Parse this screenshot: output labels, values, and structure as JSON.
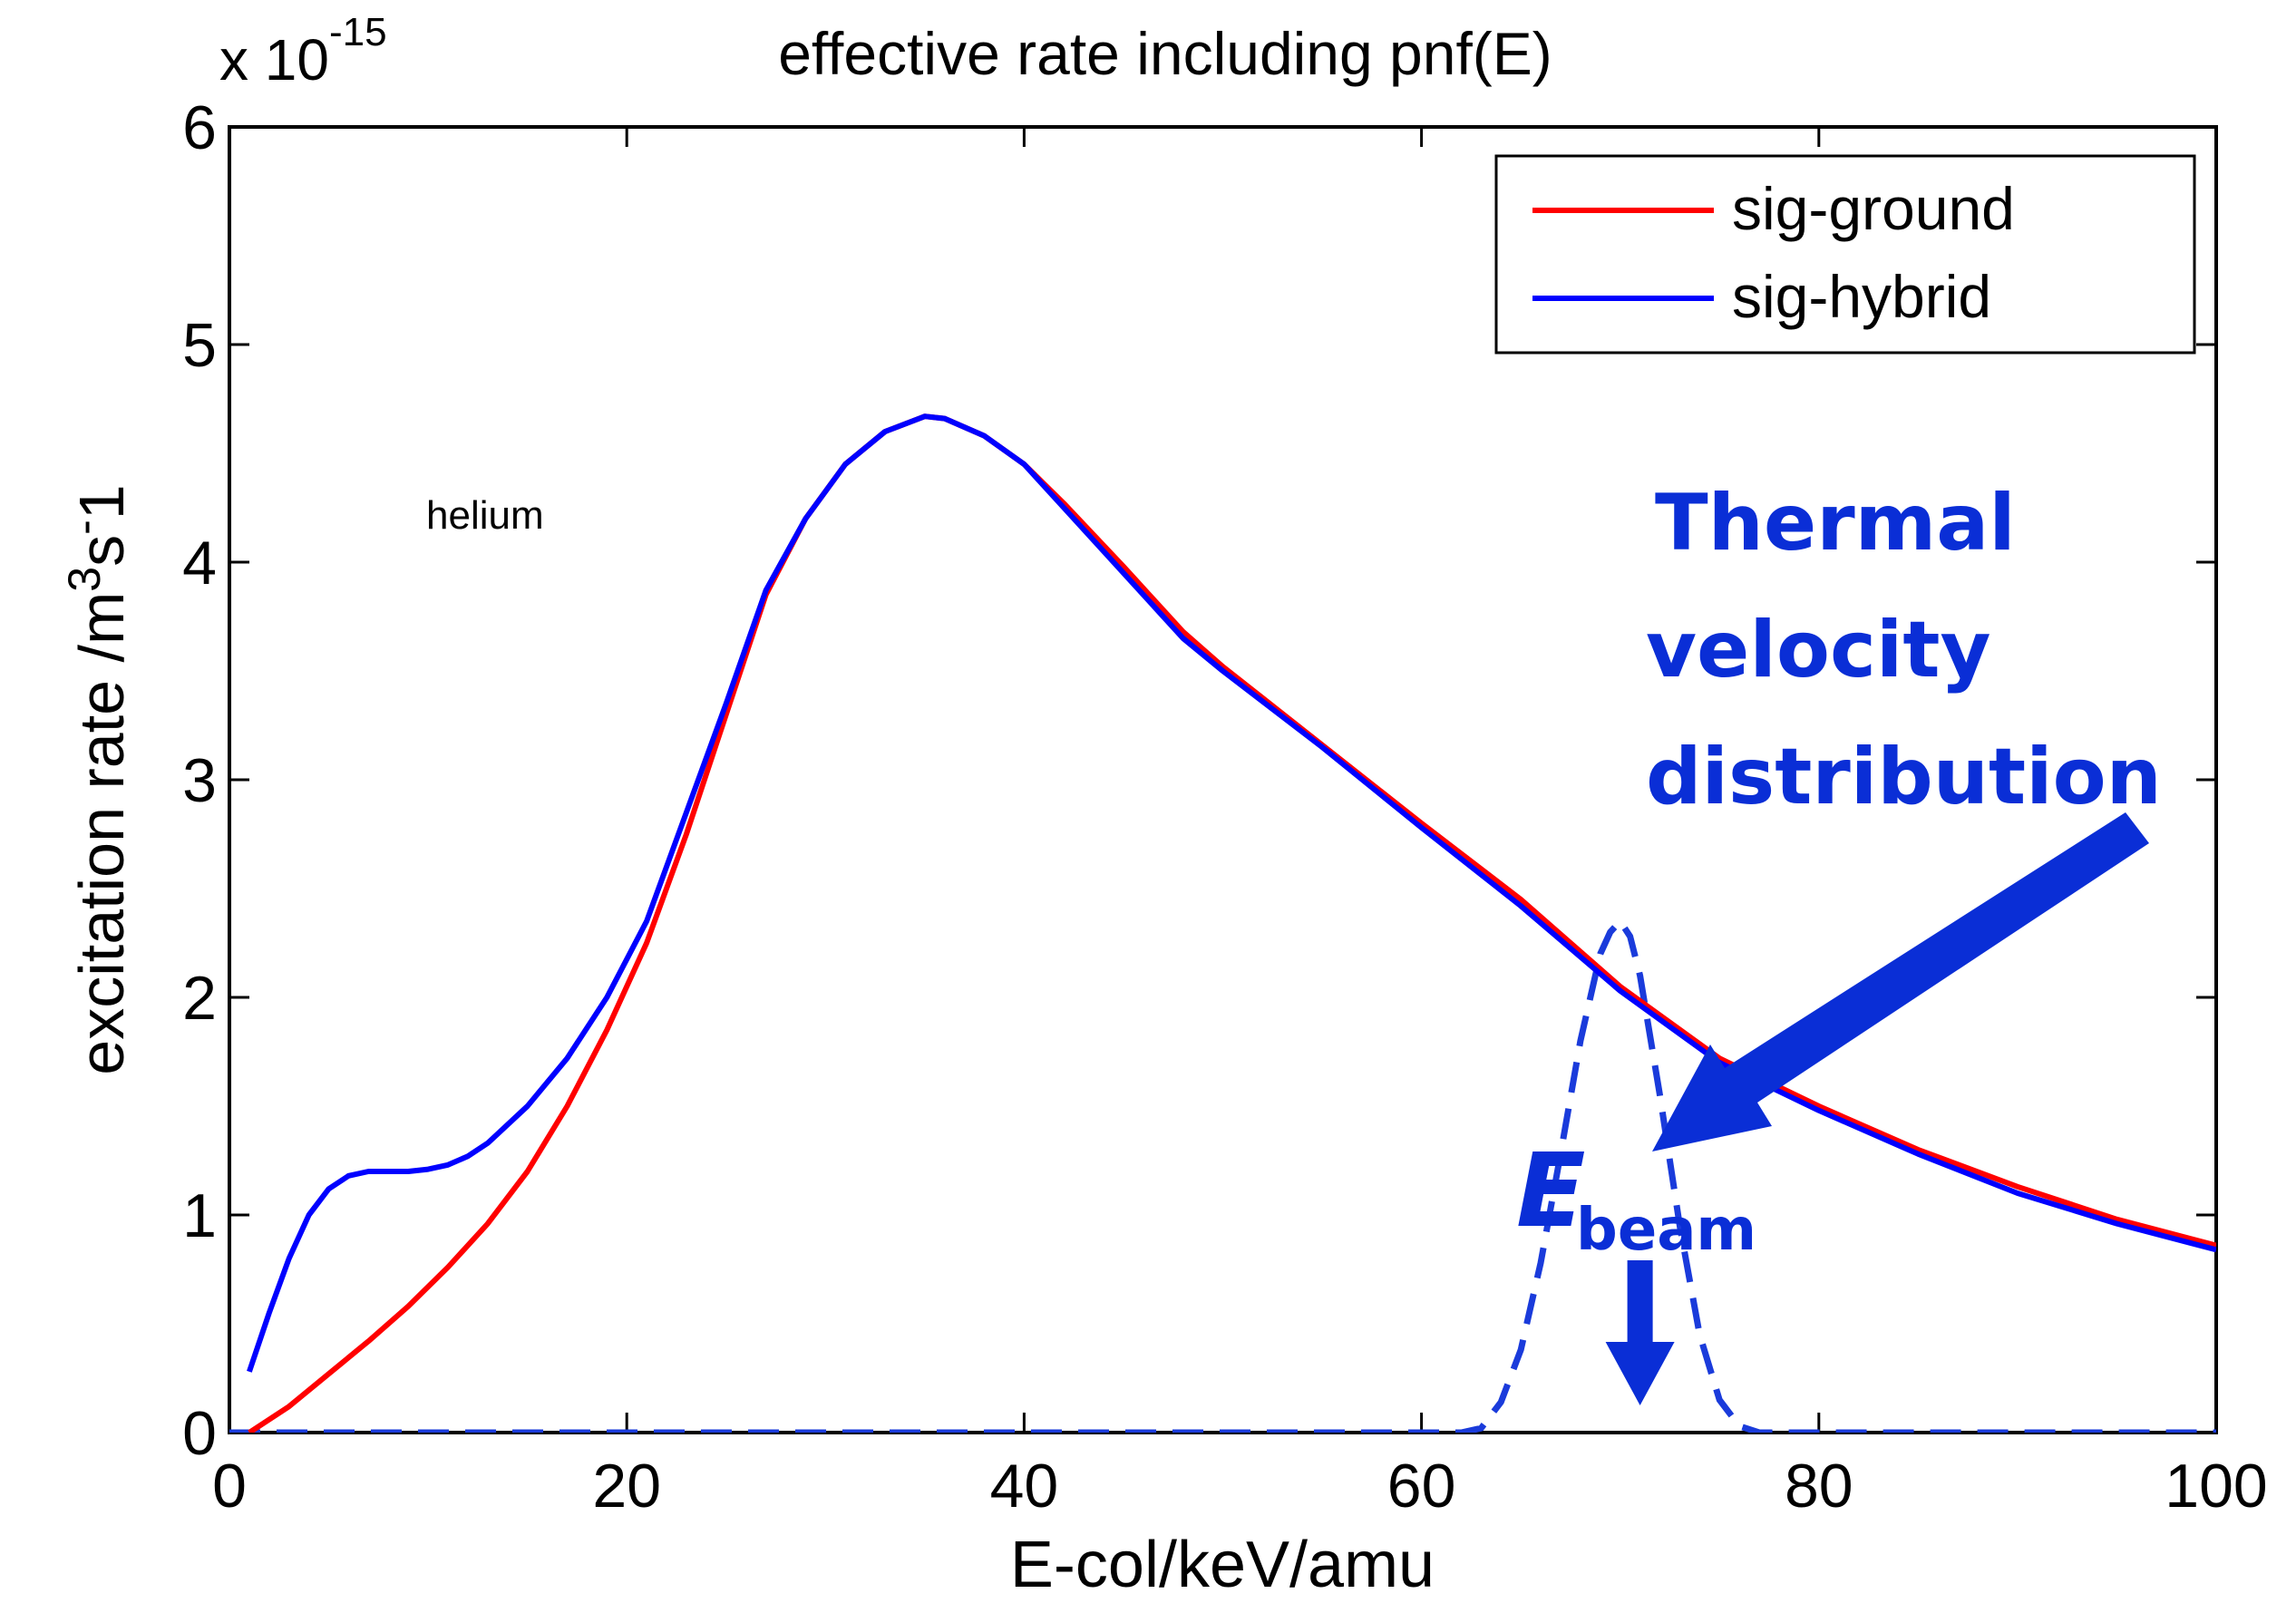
{
  "chart_data": {
    "type": "line",
    "title": "effective rate including pnf(E)",
    "xlabel": "E-col/keV/amu",
    "ylabel": {
      "base": "excitation rate /m",
      "sup1": "3",
      "mid": "s",
      "sup2": "-",
      "tail": "1"
    },
    "multiplier": {
      "base": "x 10",
      "exp": "-15"
    },
    "xlim": [
      0,
      100
    ],
    "ylim": [
      0,
      6
    ],
    "xticks": [
      0,
      20,
      40,
      60,
      80,
      100
    ],
    "yticks": [
      0,
      1,
      2,
      3,
      4,
      5,
      6
    ],
    "grid": false,
    "legend_position": "top-right",
    "series": [
      {
        "name": "sig-ground",
        "color": "#ff0000",
        "style": "solid",
        "x": [
          1,
          2,
          3,
          5,
          7,
          9,
          11,
          13,
          15,
          17,
          19,
          21,
          23,
          25,
          27,
          29,
          31,
          33,
          35,
          36,
          38,
          40,
          42,
          45,
          48,
          50,
          55,
          60,
          65,
          70,
          75,
          80,
          85,
          90,
          95,
          100
        ],
        "y": [
          0.0,
          0.06,
          0.12,
          0.27,
          0.42,
          0.58,
          0.76,
          0.96,
          1.2,
          1.5,
          1.85,
          2.25,
          2.75,
          3.3,
          3.85,
          4.2,
          4.45,
          4.6,
          4.67,
          4.66,
          4.58,
          4.45,
          4.27,
          3.98,
          3.68,
          3.52,
          3.16,
          2.8,
          2.45,
          2.05,
          1.72,
          1.5,
          1.3,
          1.13,
          0.98,
          0.86
        ]
      },
      {
        "name": "sig-hybrid",
        "color": "#0000ff",
        "style": "solid",
        "x": [
          1,
          2,
          3,
          4,
          5,
          6,
          7,
          8,
          9,
          10,
          11,
          12,
          13,
          15,
          17,
          19,
          21,
          23,
          25,
          27,
          29,
          31,
          33,
          35,
          36,
          38,
          40,
          42,
          45,
          48,
          50,
          55,
          60,
          65,
          70,
          75,
          80,
          85,
          90,
          95,
          100
        ],
        "y": [
          0.28,
          0.55,
          0.8,
          1.0,
          1.12,
          1.18,
          1.2,
          1.2,
          1.2,
          1.21,
          1.23,
          1.27,
          1.33,
          1.5,
          1.72,
          2.0,
          2.35,
          2.85,
          3.35,
          3.87,
          4.2,
          4.45,
          4.6,
          4.67,
          4.66,
          4.58,
          4.45,
          4.25,
          3.95,
          3.65,
          3.5,
          3.15,
          2.78,
          2.42,
          2.03,
          1.7,
          1.48,
          1.28,
          1.1,
          0.96,
          0.84
        ]
      },
      {
        "name": "thermal velocity distribution",
        "color": "#1a3bdb",
        "style": "dashed",
        "x": [
          0,
          62,
          63,
          64,
          65,
          66,
          67,
          68,
          69,
          69.5,
          70,
          70.5,
          71,
          72,
          73,
          74,
          75,
          76,
          77,
          100
        ],
        "y": [
          0,
          0,
          0.02,
          0.14,
          0.38,
          0.78,
          1.28,
          1.8,
          2.2,
          2.3,
          2.35,
          2.28,
          2.1,
          1.55,
          0.95,
          0.45,
          0.15,
          0.03,
          0,
          0
        ]
      }
    ],
    "annotations": {
      "material_label": "helium",
      "thermal_label": [
        "Thermal",
        "velocity",
        "distribution"
      ],
      "ebeam_main": "E",
      "ebeam_sub": "beam",
      "ebeam_x": 71
    }
  },
  "colors": {
    "ground": "#ff0000",
    "hybrid": "#0000ff",
    "annotation": "#0a2ed6"
  }
}
